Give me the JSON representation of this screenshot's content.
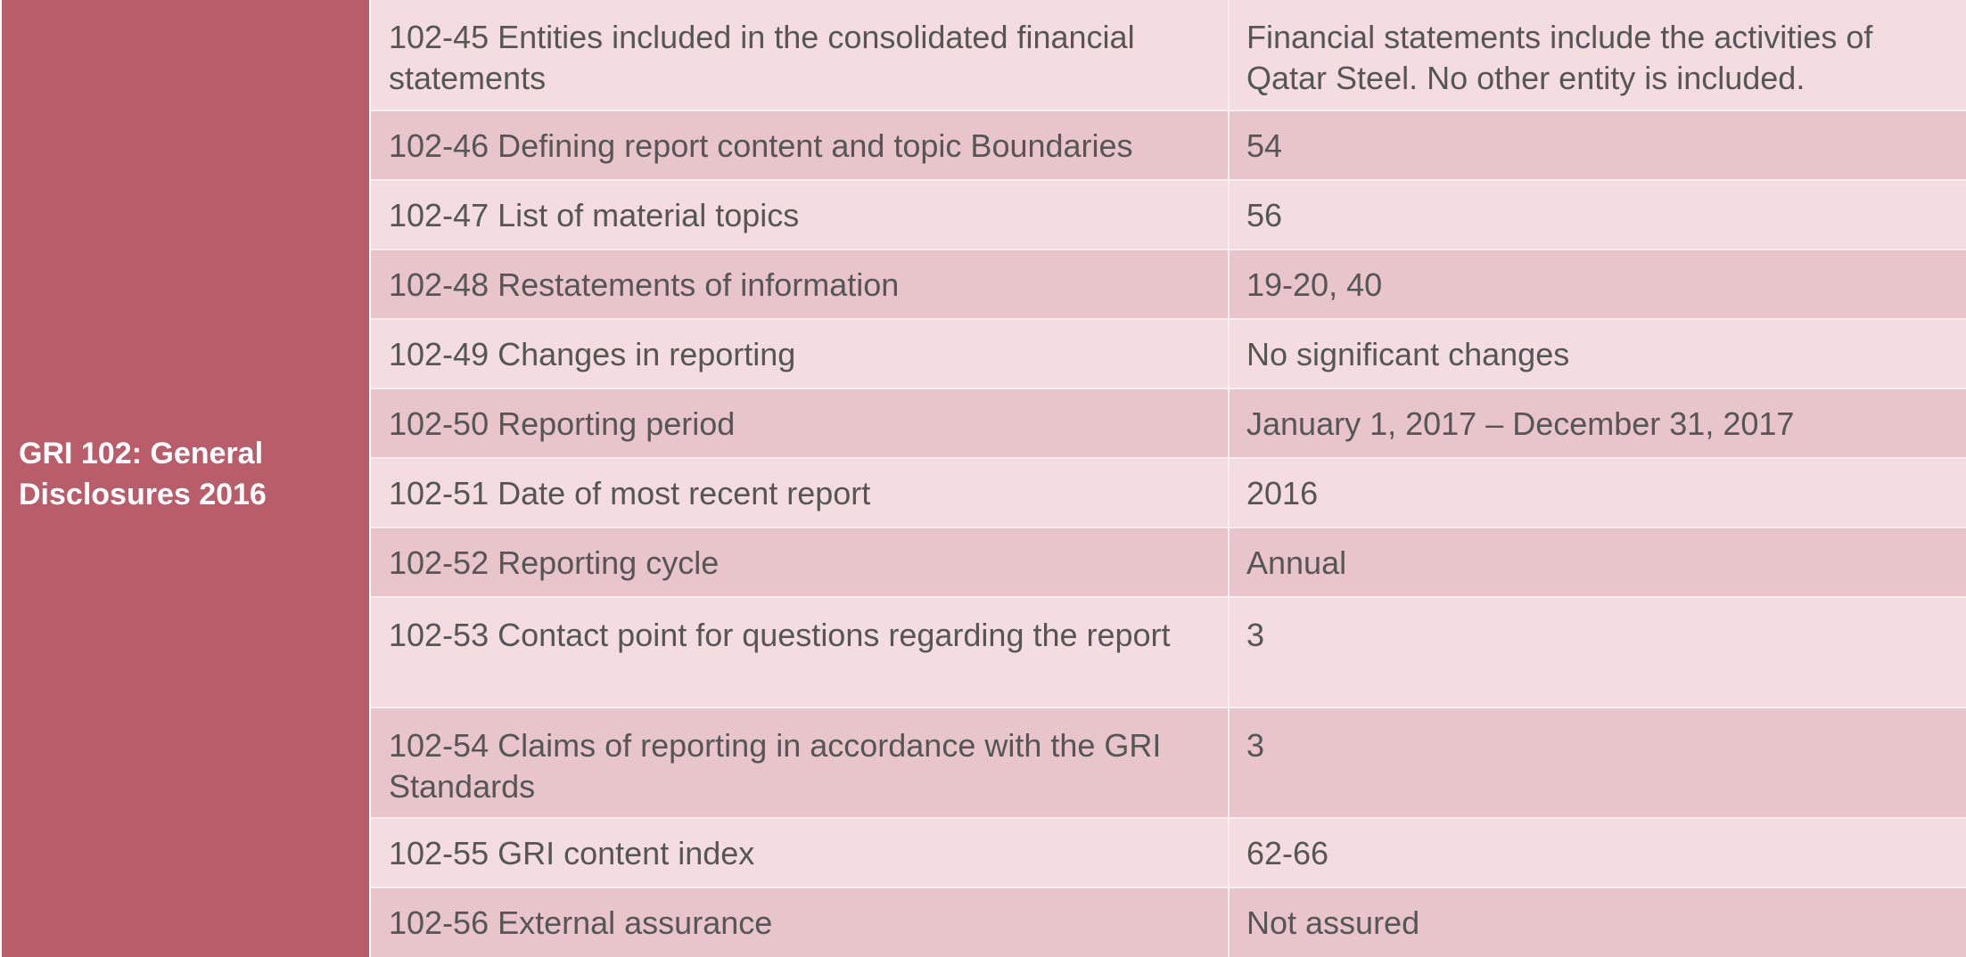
{
  "section_label": "GRI 102: General\nDisclosures 2016",
  "rows": [
    {
      "disclosure": "102-45 Entities included in the consolidated financial statements",
      "value": "Financial statements include the activities of Qatar Steel. No other entity is included."
    },
    {
      "disclosure": "102-46 Defining report content and topic Boundaries",
      "value": "54"
    },
    {
      "disclosure": "102-47 List of material topics",
      "value": "56"
    },
    {
      "disclosure": "102-48 Restatements of information",
      "value": "19-20, 40"
    },
    {
      "disclosure": "102-49 Changes in reporting",
      "value": "No significant changes"
    },
    {
      "disclosure": "102-50 Reporting period",
      "value": "January 1, 2017 – December 31, 2017"
    },
    {
      "disclosure": "102-51 Date of most recent report",
      "value": "2016"
    },
    {
      "disclosure": "102-52 Reporting cycle",
      "value": "Annual"
    },
    {
      "disclosure": "102-53 Contact point for questions regarding the report",
      "value": "3"
    },
    {
      "disclosure": "102-54 Claims of reporting in accordance with the GRI Standards",
      "value": "3"
    },
    {
      "disclosure": "102-55 GRI content index",
      "value": "62-66"
    },
    {
      "disclosure": "102-56 External assurance",
      "value": "Not assured"
    }
  ]
}
